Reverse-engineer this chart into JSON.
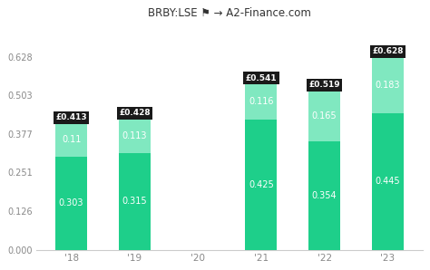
{
  "title": "BRBY:LSE ⚑ → A2-Finance.com",
  "categories": [
    "'18",
    "'19",
    "'20",
    "'21",
    "'22",
    "'23"
  ],
  "bottom_values": [
    0.303,
    0.315,
    0.0,
    0.425,
    0.354,
    0.445
  ],
  "top_values": [
    0.11,
    0.113,
    0.0,
    0.116,
    0.165,
    0.183
  ],
  "totals": [
    0.413,
    0.428,
    0.0,
    0.541,
    0.519,
    0.628
  ],
  "bar_color_bottom": "#1ecf8a",
  "bar_color_top": "#80e8c0",
  "background_color": "#ffffff",
  "plot_bg_color": "#ffffff",
  "ylim_max": 0.628,
  "yticks": [
    0.0,
    0.126,
    0.251,
    0.377,
    0.503,
    0.628
  ],
  "label_color": "#888888",
  "bar_label_color": "#ffffff",
  "total_box_color": "#1a1a1a",
  "total_text_color": "#ffffff",
  "title_color": "#333333",
  "spine_color": "#cccccc",
  "bar_width": 0.5
}
